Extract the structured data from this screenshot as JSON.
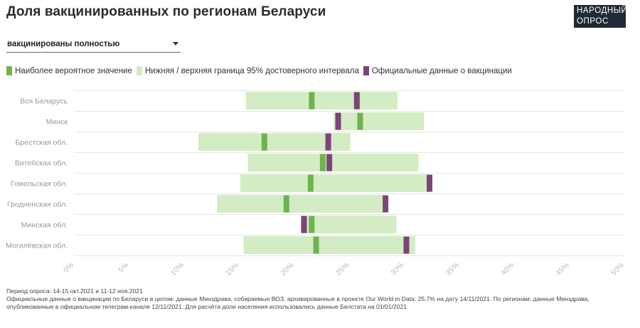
{
  "header": {
    "title": "Доля вакцинированных по регионам Беларуси",
    "logo_line1": "НАРОДНЫЙ",
    "logo_line2": "ОПРОС"
  },
  "selector": {
    "value": "вакцинированы полностью"
  },
  "legend": {
    "items": [
      {
        "label": "Наиболее вероятное значение",
        "color": "#6db34f"
      },
      {
        "label": "Нижняя / верхняя граница 95% достоверного интервала",
        "color": "#d4ecc3"
      },
      {
        "label": "Официальные данные о вакцинации",
        "color": "#7d4478"
      }
    ]
  },
  "colors": {
    "range": "#d4ecc3",
    "estimate": "#6db34f",
    "official": "#7d4478",
    "grid": "#e6e6e6",
    "axis_label": "#bbbbbb",
    "category_label": "#999999"
  },
  "chart_data": {
    "type": "bar",
    "orientation": "horizontal",
    "xlim": [
      0,
      50
    ],
    "x_ticks": [
      "0%",
      "5%",
      "10%",
      "15%",
      "20%",
      "25%",
      "30%",
      "35%",
      "40%",
      "45%",
      "50%"
    ],
    "categories": [
      "Вся Беларусь",
      "Минск",
      "Брестская обл.",
      "Витебская обл.",
      "Гомельская обл.",
      "Гродненская обл.",
      "Минская обл.",
      "Могилёвская обл."
    ],
    "series": [
      {
        "name": "Нижняя / верхняя граница 95% достоверного интервала",
        "lower": [
          15.6,
          23.6,
          11.3,
          15.8,
          15.1,
          13.0,
          20.6,
          15.4
        ],
        "upper": [
          29.4,
          31.8,
          25.1,
          31.3,
          32.3,
          28.3,
          29.3,
          31.0
        ]
      },
      {
        "name": "Наиболее вероятное значение",
        "values": [
          21.6,
          26.0,
          17.3,
          22.6,
          21.5,
          19.3,
          21.6,
          22.0
        ]
      },
      {
        "name": "Официальные данные о вакцинации",
        "values": [
          25.7,
          24.0,
          23.1,
          23.2,
          32.3,
          28.3,
          20.9,
          30.2
        ]
      }
    ]
  },
  "footer": {
    "line1": "Период опроса: 14-15 окт.2021 и 11-12 ноя.2021",
    "line2": "Официальные данные о вакцинации по Беларуси в целом: данные Минздрава, собираемые ВОЗ, архивированные в проекте Our World in Data: 25.7% на дату 14/11/2021. По регионам: данные Минздрава,",
    "line3": "опубликованные в официальном телеграм-канале 12/11/2021. Для расчёта доли населения использовались данные Белстата на 01/01/2021"
  }
}
